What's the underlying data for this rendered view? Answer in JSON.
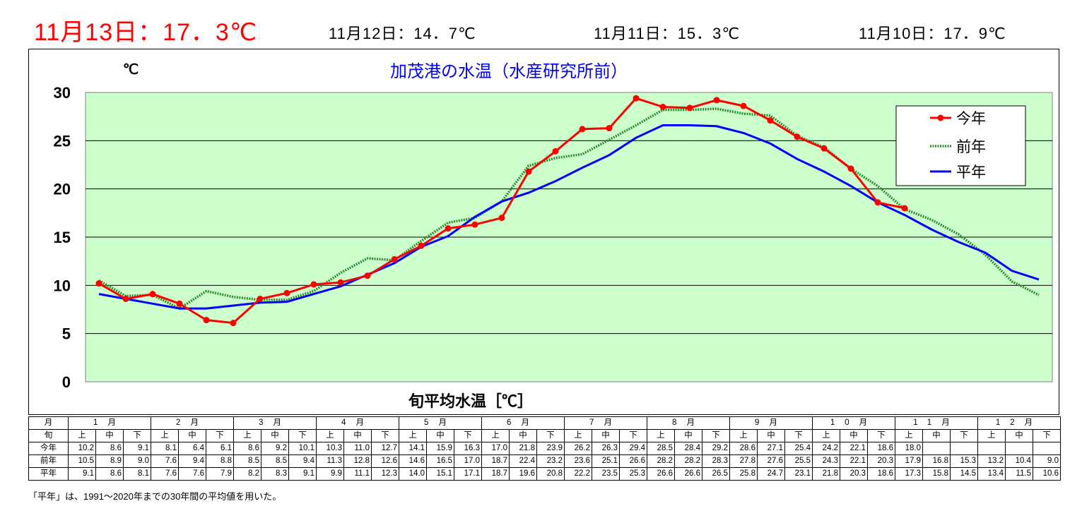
{
  "header": {
    "today": "11月13日：17．3℃",
    "prev1": "11月12日：14．7℃",
    "prev2": "11月11日：15．3℃",
    "prev3": "11月10日：17．9℃"
  },
  "chart_data": {
    "type": "line",
    "title": "加茂港の水温（水産研究所前）",
    "xlabel": "旬平均水温［℃］",
    "ylabel": "℃",
    "ylim": [
      0,
      30
    ],
    "yticks": [
      "0",
      "5",
      "10",
      "15",
      "20",
      "25",
      "30"
    ],
    "grid": true,
    "legend_position": "top-right",
    "series": [
      {
        "name": "今年",
        "color": "#ff0000",
        "marker": "circle",
        "values": [
          10.2,
          8.6,
          9.1,
          8.1,
          6.4,
          6.1,
          8.6,
          9.2,
          10.1,
          10.3,
          11.0,
          12.7,
          14.1,
          15.9,
          16.3,
          17.0,
          21.8,
          23.9,
          26.2,
          26.3,
          29.4,
          28.5,
          28.4,
          29.2,
          28.6,
          27.1,
          25.4,
          24.2,
          22.1,
          18.6,
          18.0,
          null,
          null,
          null,
          null,
          null
        ]
      },
      {
        "name": "前年",
        "color": "#2e8b2e",
        "marker": "none",
        "values": [
          10.5,
          8.9,
          9.0,
          7.6,
          9.4,
          8.8,
          8.5,
          8.5,
          9.4,
          11.3,
          12.8,
          12.6,
          14.6,
          16.5,
          17.0,
          18.7,
          22.4,
          23.2,
          23.6,
          25.1,
          26.6,
          28.2,
          28.2,
          28.3,
          27.8,
          27.6,
          25.5,
          24.3,
          22.1,
          20.3,
          17.9,
          16.8,
          15.3,
          13.2,
          10.4,
          9.0
        ]
      },
      {
        "name": "平年",
        "color": "#0000ff",
        "marker": "none",
        "values": [
          9.1,
          8.6,
          8.1,
          7.6,
          7.6,
          7.9,
          8.2,
          8.3,
          9.1,
          9.9,
          11.1,
          12.3,
          14.0,
          15.1,
          17.1,
          18.7,
          19.6,
          20.8,
          22.2,
          23.5,
          25.3,
          26.6,
          26.6,
          26.5,
          25.8,
          24.7,
          23.1,
          21.8,
          20.3,
          18.6,
          17.3,
          15.8,
          14.5,
          13.4,
          11.5,
          10.6
        ]
      }
    ]
  },
  "table": {
    "month_header": "月",
    "months": [
      "1月",
      "2月",
      "3月",
      "4月",
      "5月",
      "6月",
      "7月",
      "8月",
      "9月",
      "10月",
      "11月",
      "12月"
    ],
    "decade_header": "旬",
    "decades": [
      "上",
      "中",
      "下"
    ],
    "rows": [
      {
        "label": "今年",
        "values": [
          "10.2",
          "8.6",
          "9.1",
          "8.1",
          "6.4",
          "6.1",
          "8.6",
          "9.2",
          "10.1",
          "10.3",
          "11.0",
          "12.7",
          "14.1",
          "15.9",
          "16.3",
          "17.0",
          "21.8",
          "23.9",
          "26.2",
          "26.3",
          "29.4",
          "28.5",
          "28.4",
          "29.2",
          "28.6",
          "27.1",
          "25.4",
          "24.2",
          "22.1",
          "18.6",
          "18.0",
          "",
          "",
          "",
          "",
          ""
        ]
      },
      {
        "label": "前年",
        "values": [
          "10.5",
          "8.9",
          "9.0",
          "7.6",
          "9.4",
          "8.8",
          "8.5",
          "8.5",
          "9.4",
          "11.3",
          "12.8",
          "12.6",
          "14.6",
          "16.5",
          "17.0",
          "18.7",
          "22.4",
          "23.2",
          "23.6",
          "25.1",
          "26.6",
          "28.2",
          "28.2",
          "28.3",
          "27.8",
          "27.6",
          "25.5",
          "24.3",
          "22.1",
          "20.3",
          "17.9",
          "16.8",
          "15.3",
          "13.2",
          "10.4",
          "9.0"
        ]
      },
      {
        "label": "平年",
        "values": [
          "9.1",
          "8.6",
          "8.1",
          "7.6",
          "7.6",
          "7.9",
          "8.2",
          "8.3",
          "9.1",
          "9.9",
          "11.1",
          "12.3",
          "14.0",
          "15.1",
          "17.1",
          "18.7",
          "19.6",
          "20.8",
          "22.2",
          "23.5",
          "25.3",
          "26.6",
          "26.6",
          "26.5",
          "25.8",
          "24.7",
          "23.1",
          "21.8",
          "20.3",
          "18.6",
          "17.3",
          "15.8",
          "14.5",
          "13.4",
          "11.5",
          "10.6"
        ]
      }
    ]
  },
  "note": "「平年」は、1991～2020年までの30年間の平均値を用いた。"
}
